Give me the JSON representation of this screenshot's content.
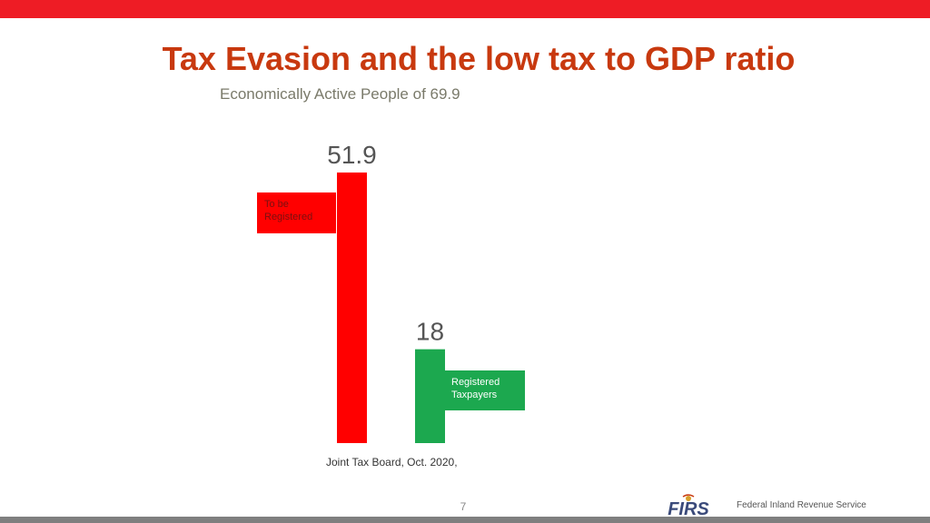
{
  "slide": {
    "title": "Tax Evasion and the low tax to GDP ratio",
    "subtitle": "Economically Active People of 69.9",
    "source": "Joint Tax Board, Oct. 2020,",
    "page_number": "7",
    "footer_org": "Federal Inland Revenue Service",
    "logo_text": "FIRS"
  },
  "colors": {
    "top_bar": "#ee1c25",
    "bottom_bar": "#7f7f7f",
    "title": "#c8390f",
    "subtitle": "#7a7a6a",
    "bar_to_be_registered": "#ff0000",
    "bar_registered": "#1ca84f",
    "value_label": "#555555"
  },
  "chart_data": {
    "type": "bar",
    "categories": [
      "To be Registered",
      "Registered Taxpayers"
    ],
    "values": [
      51.9,
      18
    ],
    "title": "Economically Active People of 69.9",
    "data_labels": [
      "51.9",
      "18"
    ],
    "legend_labels": [
      [
        "To be",
        "Registered"
      ],
      [
        "Registered",
        "Taxpayers"
      ]
    ],
    "ylim": [
      0,
      51.9
    ],
    "grid": false,
    "axes_visible": false
  }
}
